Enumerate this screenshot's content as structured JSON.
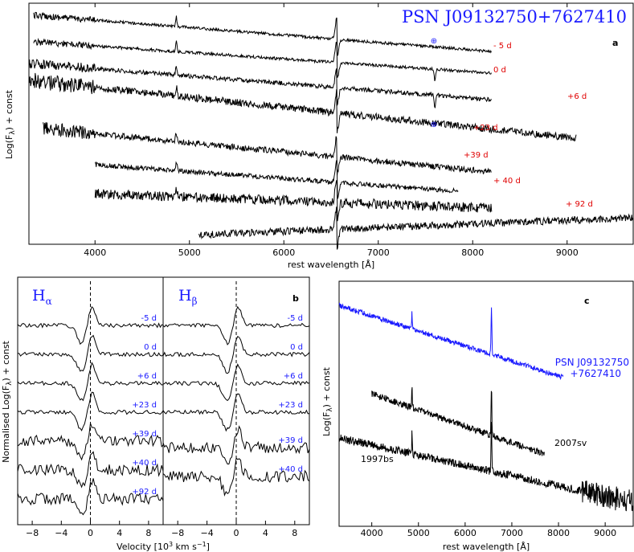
{
  "chart_data": [
    {
      "panel": "a",
      "type": "line",
      "title": "PSN J09132750+7627410",
      "panel_label": "a",
      "xlabel": "rest wavelength [Å]",
      "ylabel": "Log(F_λ) + const",
      "xlim": [
        3300,
        9700
      ],
      "xticks": [
        "4000",
        "5000",
        "6000",
        "7000",
        "8000",
        "9000"
      ],
      "series": [
        {
          "label": "",
          "x": [
            3350,
            8200
          ],
          "start": 0.05,
          "end": 0.2,
          "noise": 0.012,
          "lines": [
            4861,
            6563
          ]
        },
        {
          "label": "- 5 d",
          "x": [
            3350,
            8200
          ],
          "start": 0.16,
          "end": 0.29,
          "noise": 0.012,
          "lines": [
            4861,
            6563
          ],
          "telluric": 7600
        },
        {
          "label": "0 d",
          "x": [
            3300,
            8200
          ],
          "start": 0.25,
          "end": 0.4,
          "noise": 0.018,
          "lines": [
            4861,
            6563
          ],
          "telluric": 7600
        },
        {
          "label": "+6 d",
          "x": [
            3300,
            9100
          ],
          "start": 0.32,
          "end": 0.56,
          "noise": 0.03,
          "lines": [
            4861,
            6563
          ]
        },
        {
          "label": "+23 d",
          "x": [
            3450,
            8200
          ],
          "start": 0.52,
          "end": 0.7,
          "noise": 0.025,
          "lines": [
            4861,
            6563
          ]
        },
        {
          "label": "+39 d",
          "x": [
            4000,
            7850
          ],
          "start": 0.67,
          "end": 0.78,
          "noise": 0.02,
          "lines": [
            4861,
            6563
          ]
        },
        {
          "label": "+ 40 d",
          "x": [
            4000,
            8200
          ],
          "start": 0.79,
          "end": 0.85,
          "noise": 0.04,
          "lines": [
            4861,
            6563
          ]
        },
        {
          "label": "+ 92 d",
          "x": [
            5100,
            9700
          ],
          "start": 0.96,
          "end": 0.89,
          "noise": 0.03,
          "lines": [
            6563
          ]
        }
      ],
      "annotations": [
        "⊕",
        "⊕"
      ]
    },
    {
      "panel": "b",
      "type": "line",
      "panel_label": "b",
      "subpanels": [
        "Hα",
        "Hβ"
      ],
      "xlabel": "Velocity [10³ km s⁻¹]",
      "ylabel": "Normalised Log(F_λ) + const",
      "xlim": [
        -10,
        10
      ],
      "xticks": [
        "−8",
        "−4",
        "0",
        "4",
        "8"
      ],
      "epochs_left": [
        "-5 d",
        "0 d",
        "+6 d",
        "+23 d",
        "+39 d",
        "+40 d",
        "+92 d"
      ],
      "epochs_right": [
        "-5 d",
        "0 d",
        "+6 d",
        "+23 d",
        "+39 d",
        "+40 d"
      ]
    },
    {
      "panel": "c",
      "type": "line",
      "panel_label": "c",
      "xlabel": "rest wavelength [Å]",
      "ylabel": "Log(F_λ) + const",
      "xlim": [
        3300,
        9600
      ],
      "xticks": [
        "4000",
        "5000",
        "6000",
        "7000",
        "8000",
        "9000"
      ],
      "series": [
        {
          "name": "PSN J09132750\n+7627410",
          "color": "#1a1aff",
          "x": [
            3300,
            8100
          ]
        },
        {
          "name": "2007sv",
          "color": "#000000",
          "x": [
            4000,
            7700
          ]
        },
        {
          "name": "1997bs",
          "color": "#000000",
          "x": [
            3300,
            9600
          ]
        }
      ]
    }
  ],
  "texts": {
    "title_a": "PSN J09132750+7627410",
    "panel_a": "a",
    "panel_b": "b",
    "panel_c": "c",
    "xlabel_a": "rest wavelength [Å]",
    "xlabel_b": "Velocity [10",
    "xlabel_b_sup": "3",
    "xlabel_b_end": " km s",
    "xlabel_b_sup2": "−1",
    "xlabel_b_close": "]",
    "xlabel_c": "rest wavelength [Å]",
    "ylabel_a": "Log(F",
    "ylabel_a_sub": "λ",
    "ylabel_a_end": ") + const",
    "ylabel_b": "Normalised Log(F",
    "ylabel_b_end": ") + const",
    "ylabel_c": "Log(F",
    "ylabel_c_end": ") + const",
    "h_alpha": "H",
    "h_alpha_sub": "α",
    "h_beta": "H",
    "h_beta_sub": "β",
    "psn_line1": "PSN J09132750",
    "psn_line2": "+7627410",
    "sn2007sv": "2007sv",
    "sn1997bs": "1997bs"
  }
}
